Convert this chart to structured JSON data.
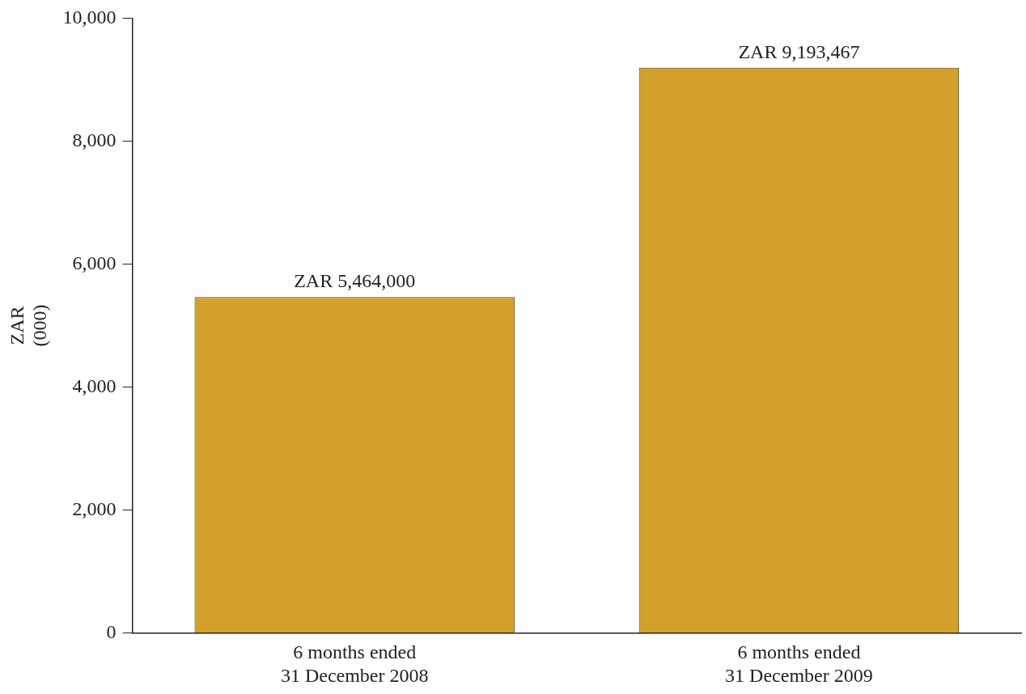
{
  "chart_data": {
    "type": "bar",
    "ylabel": "ZAR\n(000)",
    "categories": [
      "6 months ended\n31 December 2008",
      "6 months ended\n31 December 2009"
    ],
    "values": [
      5464,
      9193.467
    ],
    "value_labels": [
      "ZAR 5,464,000",
      "ZAR 9,193,467"
    ],
    "color": "#d4a02c",
    "ylim": [
      0,
      10000
    ],
    "yticks": [
      0,
      {
        "value": 2000,
        "label": "2,000"
      },
      {
        "value": 4000,
        "label": "4,000"
      },
      {
        "value": 6000,
        "label": "6,000"
      },
      {
        "value": 8000,
        "label": "8,000"
      },
      {
        "value": 10000,
        "label": "10,000"
      }
    ],
    "grid": false,
    "legend": false
  }
}
